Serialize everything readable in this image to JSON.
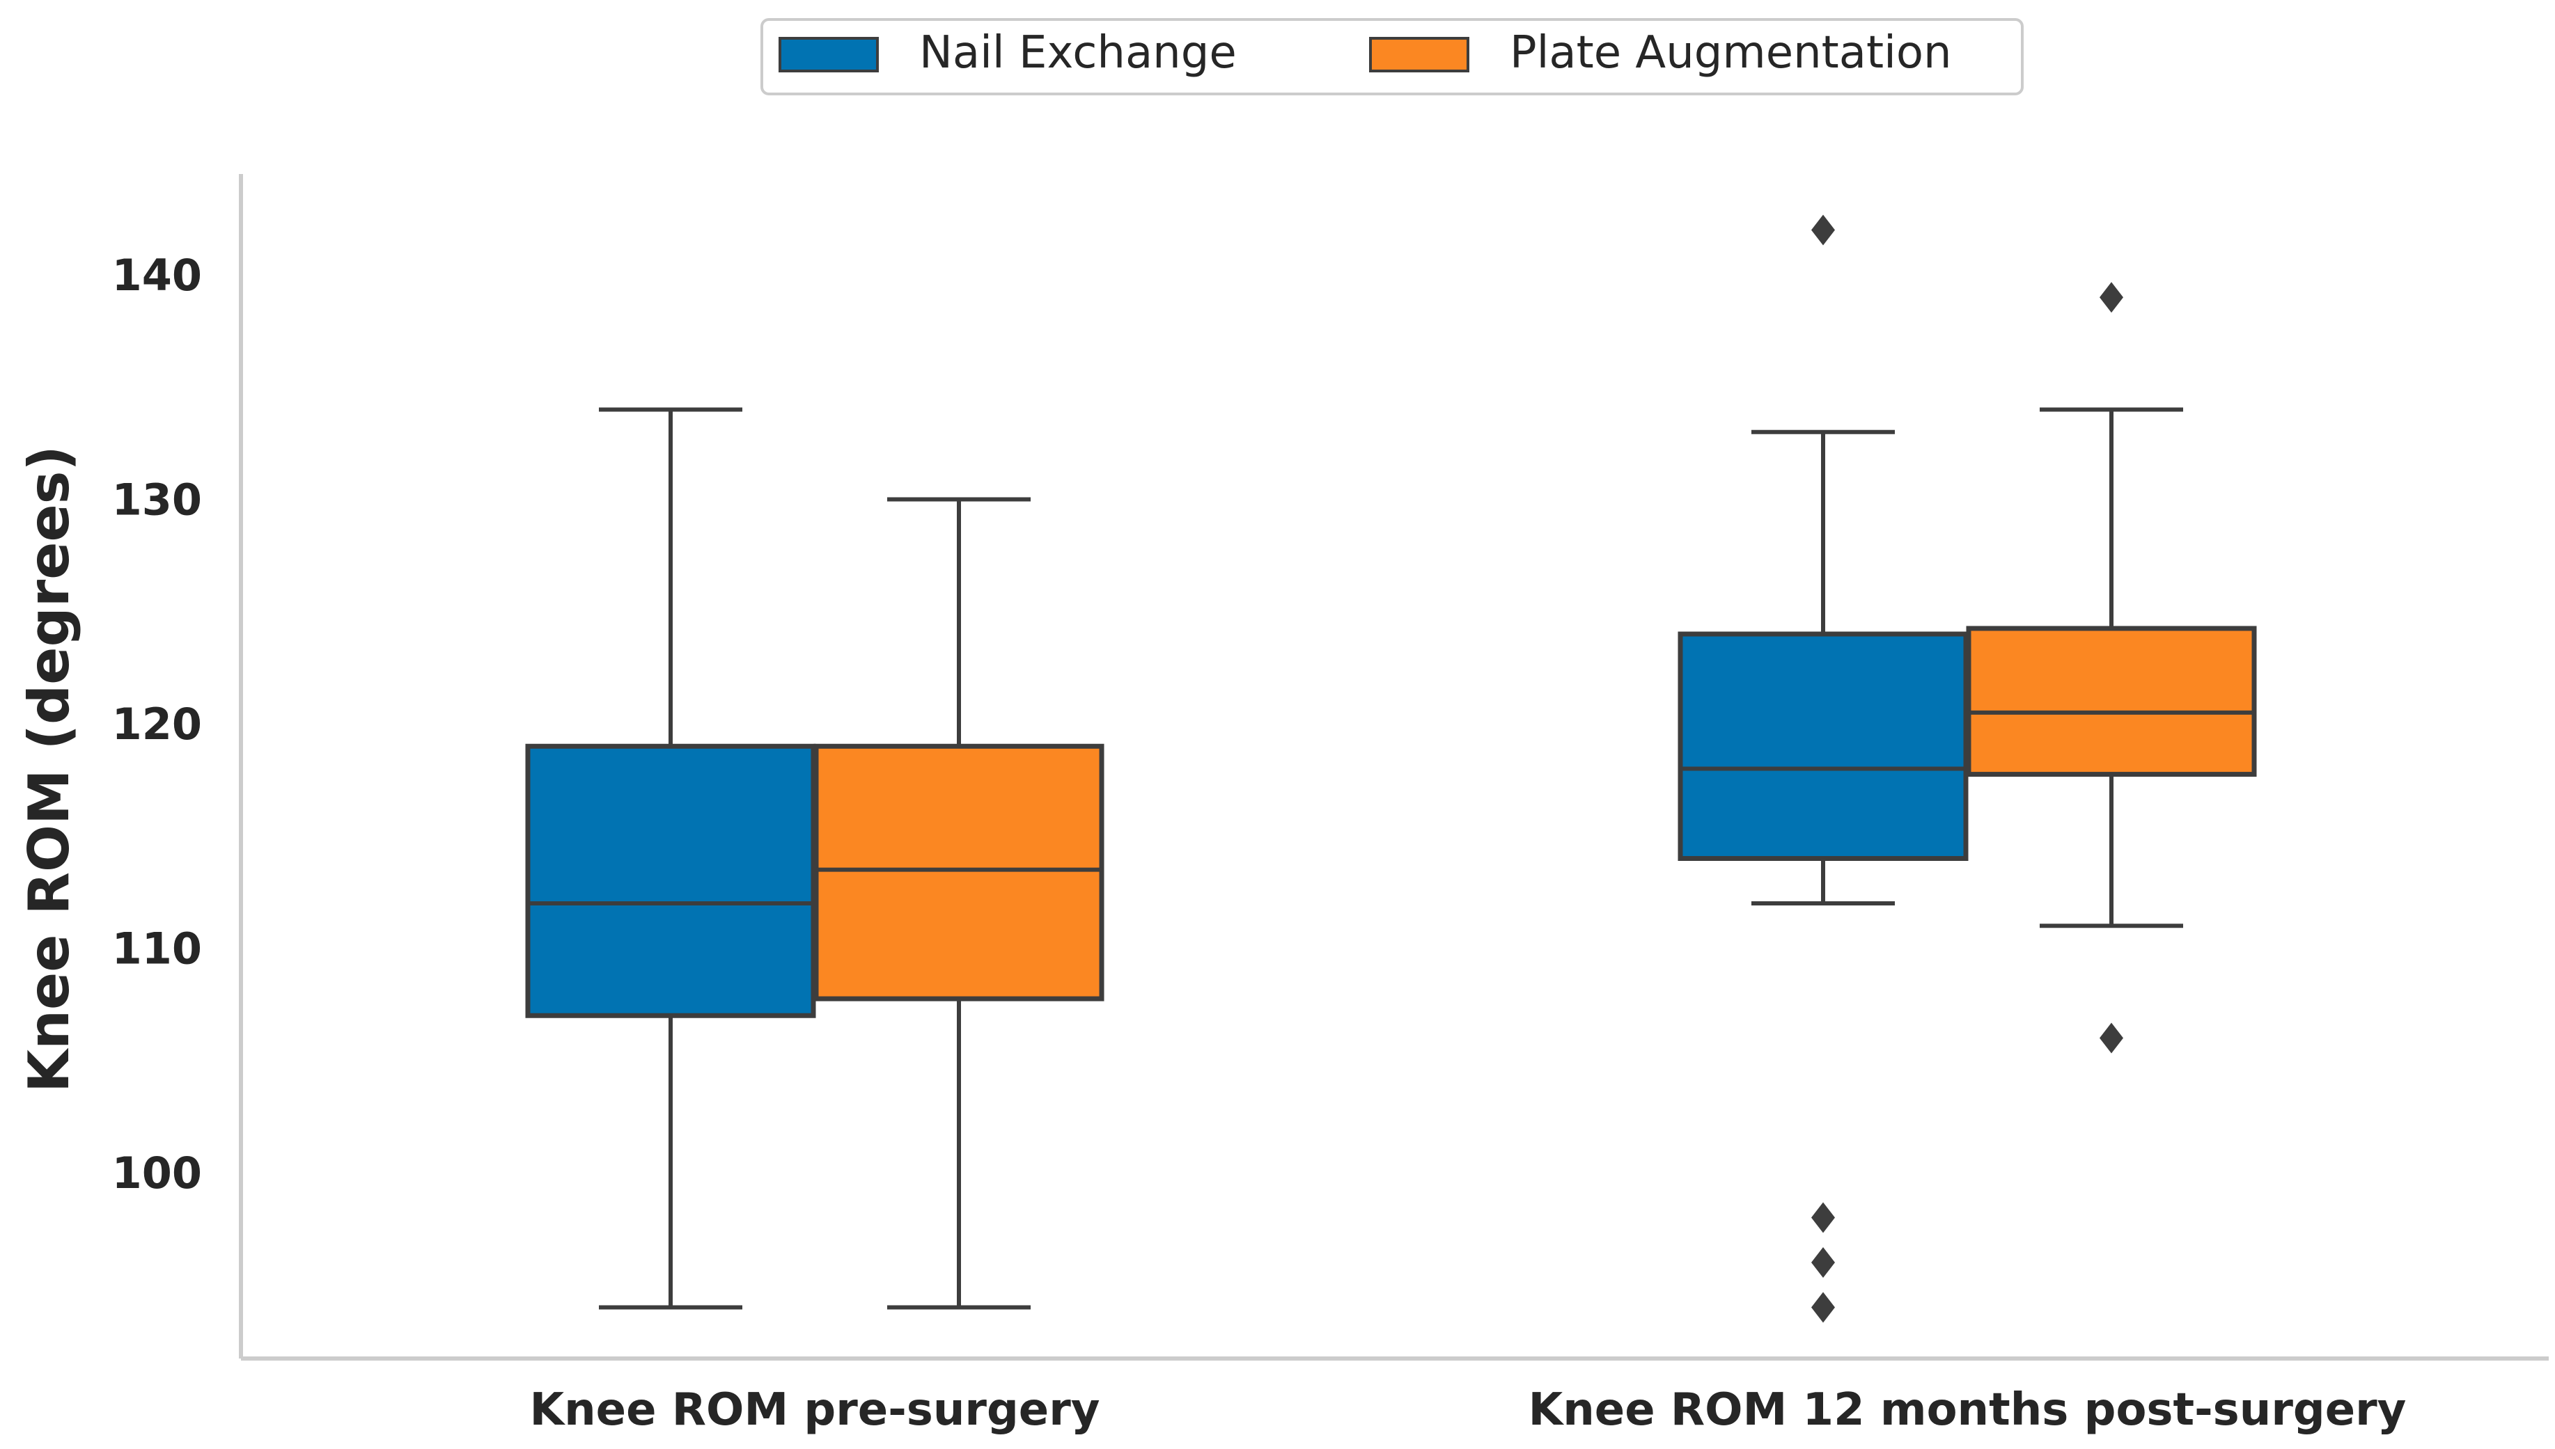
{
  "chart_data": {
    "type": "boxplot",
    "title": "",
    "xlabel": "",
    "ylabel": "Knee ROM (degrees)",
    "ylim": [
      91.5,
      145
    ],
    "yticks": [
      100,
      110,
      120,
      130,
      140
    ],
    "grid": false,
    "legend_position": "top-center",
    "categories": [
      "Knee ROM pre-surgery",
      "Knee ROM 12 months post-surgery"
    ],
    "series": [
      {
        "name": "Nail Exchange",
        "color": "#0173b2",
        "boxes": [
          {
            "whisker_low": 94,
            "q1": 107,
            "median": 112,
            "q3": 119,
            "whisker_high": 134,
            "outliers": []
          },
          {
            "whisker_low": 112,
            "q1": 114,
            "median": 118,
            "q3": 124,
            "whisker_high": 133,
            "outliers": [
              142,
              98,
              96,
              94
            ]
          }
        ]
      },
      {
        "name": "Plate Augmentation",
        "color": "#fb8722",
        "boxes": [
          {
            "whisker_low": 94,
            "q1": 107.75,
            "median": 113.5,
            "q3": 119,
            "whisker_high": 130,
            "outliers": []
          },
          {
            "whisker_low": 111,
            "q1": 117.75,
            "median": 120.5,
            "q3": 124.25,
            "whisker_high": 134,
            "outliers": [
              139,
              106
            ]
          }
        ]
      }
    ],
    "line_color": "#3d3d3d",
    "axis_color": "#cccccc"
  }
}
